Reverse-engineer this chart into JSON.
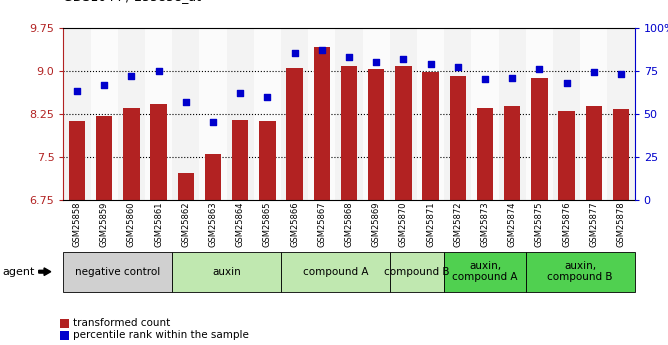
{
  "samples": [
    "GSM25858",
    "GSM25859",
    "GSM25860",
    "GSM25861",
    "GSM25862",
    "GSM25863",
    "GSM25864",
    "GSM25865",
    "GSM25866",
    "GSM25867",
    "GSM25868",
    "GSM25869",
    "GSM25870",
    "GSM25871",
    "GSM25872",
    "GSM25873",
    "GSM25874",
    "GSM25875",
    "GSM25876",
    "GSM25877",
    "GSM25878"
  ],
  "bar_values": [
    8.12,
    8.22,
    8.35,
    8.42,
    7.22,
    7.55,
    8.14,
    8.12,
    9.05,
    9.42,
    9.08,
    9.03,
    9.08,
    8.97,
    8.9,
    8.35,
    8.38,
    8.88,
    8.3,
    8.38,
    8.34
  ],
  "dot_values": [
    63,
    67,
    72,
    75,
    57,
    45,
    62,
    60,
    85,
    87,
    83,
    80,
    82,
    79,
    77,
    70,
    71,
    76,
    68,
    74,
    73
  ],
  "bar_color": "#B22222",
  "dot_color": "#0000CC",
  "ylim_left": [
    6.75,
    9.75
  ],
  "ylim_right": [
    0,
    100
  ],
  "yticks_left": [
    6.75,
    7.5,
    8.25,
    9.0,
    9.75
  ],
  "yticks_right": [
    0,
    25,
    50,
    75,
    100
  ],
  "ytick_labels_right": [
    "0",
    "25",
    "50",
    "75",
    "100%"
  ],
  "bar_bottom": 6.75,
  "col_colors": [
    "#e0e0e0",
    "#f0f0f0",
    "#e0e0e0",
    "#f0f0f0",
    "#e0e0e0",
    "#f0f0f0",
    "#e0e0e0",
    "#f0f0f0",
    "#e0e0e0",
    "#f0f0f0",
    "#e0e0e0",
    "#f0f0f0",
    "#e0e0e0",
    "#f0f0f0",
    "#e0e0e0",
    "#f0f0f0",
    "#e0e0e0",
    "#f0f0f0",
    "#e0e0e0",
    "#f0f0f0",
    "#e0e0e0"
  ],
  "groups": [
    {
      "label": "negative control",
      "start": 0,
      "end": 3,
      "color": "#d0d0d0"
    },
    {
      "label": "auxin",
      "start": 4,
      "end": 7,
      "color": "#c0e8b0"
    },
    {
      "label": "compound A",
      "start": 8,
      "end": 11,
      "color": "#c0e8b0"
    },
    {
      "label": "compound B",
      "start": 12,
      "end": 13,
      "color": "#c0e8b0"
    },
    {
      "label": "auxin,\ncompound A",
      "start": 14,
      "end": 16,
      "color": "#50d050"
    },
    {
      "label": "auxin,\ncompound B",
      "start": 17,
      "end": 20,
      "color": "#50d050"
    }
  ],
  "agent_label": "agent",
  "legend_bar_label": "transformed count",
  "legend_dot_label": "percentile rank within the sample",
  "background_color": "#ffffff"
}
